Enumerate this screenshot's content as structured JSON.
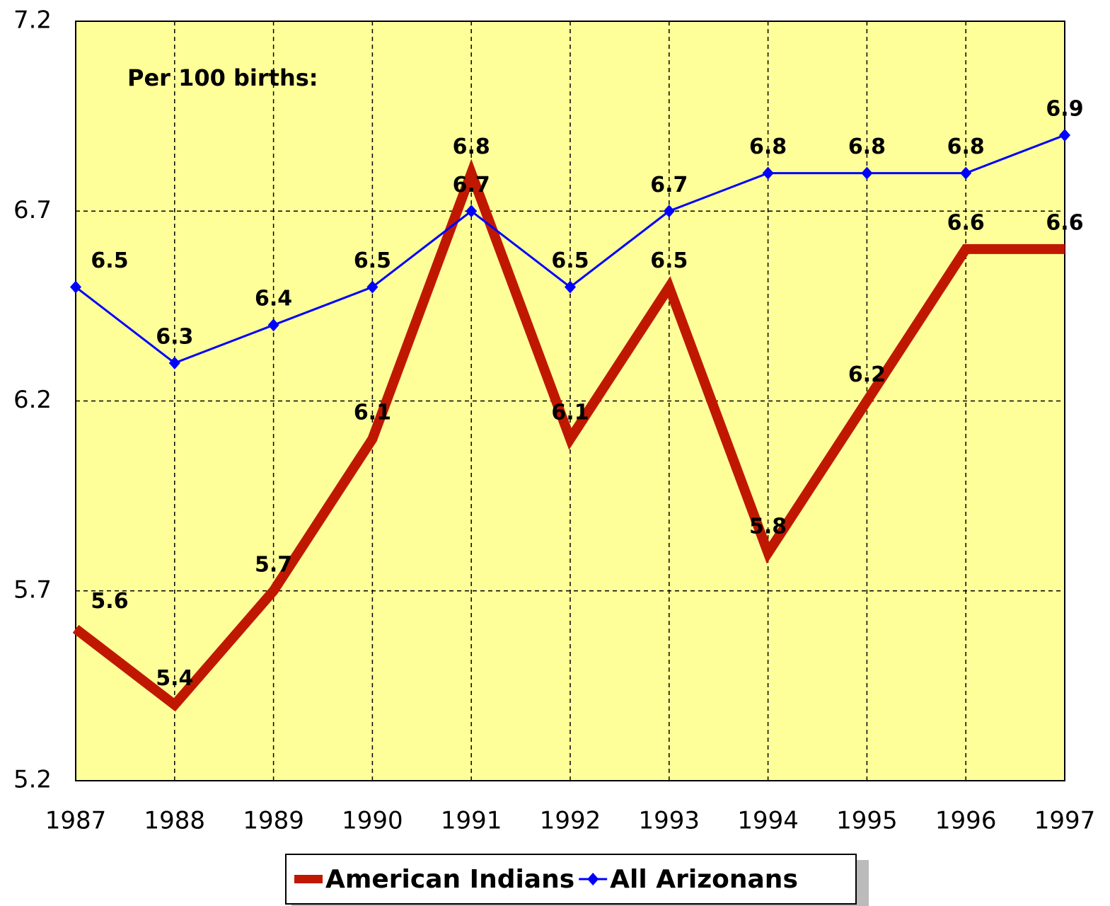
{
  "chart_data": {
    "type": "line",
    "annotation": "Per 100 births:",
    "categories": [
      "1987",
      "1988",
      "1989",
      "1990",
      "1991",
      "1992",
      "1993",
      "1994",
      "1995",
      "1996",
      "1997"
    ],
    "series": [
      {
        "name": "American Indians",
        "color": "#c01800",
        "values": [
          5.6,
          5.4,
          5.7,
          6.1,
          6.8,
          6.1,
          6.5,
          5.8,
          6.2,
          6.6,
          6.6
        ]
      },
      {
        "name": "All Arizonans",
        "color": "#0000ff",
        "values": [
          6.5,
          6.3,
          6.4,
          6.5,
          6.7,
          6.5,
          6.7,
          6.8,
          6.8,
          6.8,
          6.9
        ]
      }
    ],
    "ylim": [
      5.2,
      7.2
    ],
    "yticks": [
      5.2,
      5.7,
      6.2,
      6.7,
      7.2
    ],
    "grid": true,
    "legend": "bottom",
    "background": "#ffff99"
  }
}
